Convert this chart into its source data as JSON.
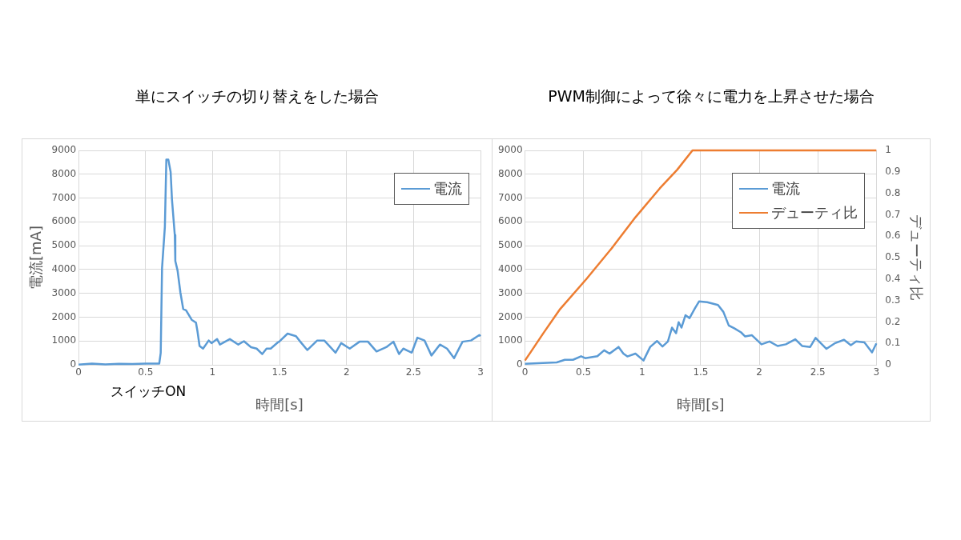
{
  "chart_data": [
    {
      "type": "line",
      "title": "単にスイッチの切り替えをした場合",
      "xlabel": "時間[s]",
      "ylabel": "電流[mA]",
      "annotations": [
        "スイッチON"
      ],
      "xlim": [
        0,
        3
      ],
      "xticks": [
        0,
        0.5,
        1,
        1.5,
        2,
        2.5,
        3
      ],
      "ylim": [
        0,
        9000
      ],
      "yticks": [
        0,
        1000,
        2000,
        3000,
        4000,
        5000,
        6000,
        7000,
        8000,
        9000
      ],
      "grid": true,
      "legend": "top right",
      "marker": "none",
      "line_style": "solid",
      "series": [
        {
          "name": "電流",
          "color": "#5b9bd5",
          "x": [
            0,
            0.1,
            0.2,
            0.3,
            0.4,
            0.5,
            0.602,
            0.613,
            0.623,
            0.644,
            0.655,
            0.67,
            0.687,
            0.697,
            0.718,
            0.722,
            0.739,
            0.76,
            0.781,
            0.802,
            0.844,
            0.876,
            0.887,
            0.903,
            0.929,
            0.971,
            0.992,
            1.034,
            1.055,
            1.129,
            1.192,
            1.234,
            1.287,
            1.329,
            1.371,
            1.403,
            1.434,
            1.487,
            1.497,
            1.56,
            1.623,
            1.655,
            1.707,
            1.781,
            1.834,
            1.918,
            1.96,
            2.024,
            2.097,
            2.16,
            2.224,
            2.297,
            2.35,
            2.392,
            2.424,
            2.487,
            2.529,
            2.582,
            2.634,
            2.697,
            2.75,
            2.803,
            2.866,
            2.929,
            2.992,
            3
          ],
          "values": [
            10,
            50,
            20,
            40,
            30,
            50,
            50,
            500,
            4070,
            5790,
            8610,
            8610,
            8090,
            6940,
            5450,
            4360,
            3950,
            3030,
            2340,
            2290,
            1890,
            1770,
            1420,
            790,
            680,
            1020,
            910,
            1080,
            850,
            1080,
            850,
            990,
            740,
            680,
            450,
            680,
            680,
            940,
            970,
            1310,
            1200,
            970,
            620,
            1020,
            1020,
            510,
            910,
            680,
            970,
            970,
            560,
            740,
            970,
            450,
            680,
            510,
            1140,
            1020,
            390,
            850,
            680,
            280,
            970,
            1020,
            1250,
            1200
          ]
        }
      ]
    },
    {
      "type": "line",
      "title": "PWM制御によって徐々に電力を上昇させた場合",
      "xlabel": "時間[s]",
      "y2label": "デューティ比",
      "xlim": [
        0,
        3
      ],
      "xticks": [
        0,
        0.5,
        1,
        1.5,
        2,
        2.5,
        3
      ],
      "ylim": [
        0,
        9000
      ],
      "yticks": [
        0,
        1000,
        2000,
        3000,
        4000,
        5000,
        6000,
        7000,
        8000,
        9000
      ],
      "y2lim": [
        0,
        1
      ],
      "y2ticks": [
        0,
        0.1,
        0.2,
        0.3,
        0.4,
        0.5,
        0.6,
        0.7,
        0.8,
        0.9,
        1
      ],
      "grid": true,
      "legend": "top right",
      "marker": "none",
      "line_style": "solid",
      "series": [
        {
          "name": "電流",
          "color": "#5b9bd5",
          "x": [
            0,
            0.271,
            0.34,
            0.41,
            0.479,
            0.514,
            0.618,
            0.676,
            0.722,
            0.799,
            0.84,
            0.874,
            0.943,
            1.012,
            1.069,
            1.127,
            1.174,
            1.22,
            1.255,
            1.29,
            1.312,
            1.336,
            1.37,
            1.405,
            1.451,
            1.486,
            1.556,
            1.648,
            1.694,
            1.74,
            1.787,
            1.845,
            1.88,
            1.938,
            2.019,
            2.088,
            2.157,
            2.227,
            2.308,
            2.366,
            2.435,
            2.481,
            2.574,
            2.644,
            2.724,
            2.782,
            2.828,
            2.898,
            2.963,
            3
          ],
          "values": [
            40,
            100,
            210,
            210,
            360,
            280,
            360,
            610,
            470,
            750,
            470,
            350,
            470,
            180,
            750,
            1000,
            770,
            980,
            1560,
            1330,
            1790,
            1560,
            2080,
            1960,
            2370,
            2660,
            2630,
            2510,
            2220,
            1650,
            1530,
            1360,
            1190,
            1240,
            860,
            980,
            790,
            860,
            1070,
            790,
            750,
            1130,
            670,
            900,
            1050,
            820,
            980,
            940,
            520,
            900
          ]
        },
        {
          "name": "デューティ比",
          "color": "#ed7d31",
          "axis": "y2",
          "x": [
            0,
            0.05,
            0.155,
            0.3,
            0.526,
            0.75,
            0.943,
            1.151,
            1.3,
            1.43,
            3
          ],
          "values": [
            0.02,
            0.06,
            0.146,
            0.26,
            0.401,
            0.55,
            0.688,
            0.823,
            0.91,
            1,
            1
          ]
        }
      ]
    }
  ]
}
